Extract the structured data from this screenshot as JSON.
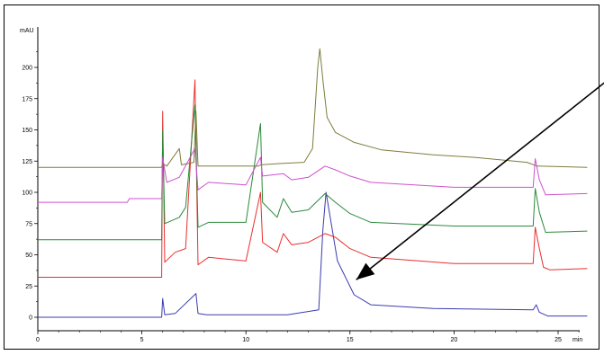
{
  "chart_data": {
    "type": "line",
    "title": "",
    "ylabel": "mAU",
    "xlabel": "min",
    "xlim": [
      0,
      26.8
    ],
    "ylim": [
      -13,
      238
    ],
    "x_ticks": [
      0,
      5,
      10,
      15,
      20,
      25
    ],
    "x_tick_labels": [
      "0",
      "5",
      "10",
      "15",
      "20",
      "25"
    ],
    "y_ticks": [
      0,
      25,
      50,
      75,
      100,
      125,
      150,
      175,
      200
    ],
    "y_tick_labels": [
      "0",
      "25",
      "50",
      "75",
      "100",
      "125",
      "150",
      "175",
      "200"
    ],
    "grid": false,
    "legend": "none",
    "series": [
      {
        "color": "#3b3bb0",
        "offset": 0,
        "points": [
          [
            0,
            0
          ],
          [
            5.95,
            0
          ],
          [
            6.0,
            15
          ],
          [
            6.1,
            2
          ],
          [
            6.6,
            3
          ],
          [
            7.6,
            19
          ],
          [
            7.7,
            3
          ],
          [
            8.1,
            2
          ],
          [
            12,
            2
          ],
          [
            13.5,
            6
          ],
          [
            13.7,
            70
          ],
          [
            13.85,
            100
          ],
          [
            14.0,
            85
          ],
          [
            14.4,
            45
          ],
          [
            15.2,
            18
          ],
          [
            16,
            10
          ],
          [
            19,
            7
          ],
          [
            23.8,
            6
          ],
          [
            23.95,
            10
          ],
          [
            24.1,
            4
          ],
          [
            24.5,
            1
          ],
          [
            26.4,
            1
          ]
        ]
      },
      {
        "color": "#e83030",
        "offset": 32,
        "points": [
          [
            0,
            32
          ],
          [
            5.95,
            32
          ],
          [
            6.0,
            165
          ],
          [
            6.1,
            44
          ],
          [
            6.6,
            52
          ],
          [
            7.1,
            55
          ],
          [
            7.55,
            190
          ],
          [
            7.7,
            42
          ],
          [
            8.2,
            48
          ],
          [
            10.0,
            45
          ],
          [
            10.7,
            100
          ],
          [
            10.8,
            60
          ],
          [
            11.5,
            52
          ],
          [
            11.8,
            67
          ],
          [
            12.2,
            58
          ],
          [
            13.0,
            60
          ],
          [
            13.8,
            67
          ],
          [
            14.3,
            64
          ],
          [
            15.0,
            55
          ],
          [
            16,
            48
          ],
          [
            20,
            43
          ],
          [
            23.8,
            43
          ],
          [
            23.9,
            72
          ],
          [
            24.1,
            55
          ],
          [
            24.3,
            40
          ],
          [
            24.6,
            38
          ],
          [
            26.4,
            39
          ]
        ]
      },
      {
        "color": "#2a8a3a",
        "offset": 62,
        "points": [
          [
            0,
            62
          ],
          [
            5.95,
            62
          ],
          [
            6.0,
            150
          ],
          [
            6.1,
            75
          ],
          [
            6.8,
            80
          ],
          [
            7.1,
            88
          ],
          [
            7.55,
            170
          ],
          [
            7.7,
            72
          ],
          [
            8.2,
            76
          ],
          [
            10.0,
            76
          ],
          [
            10.7,
            155
          ],
          [
            10.8,
            92
          ],
          [
            11.5,
            80
          ],
          [
            11.8,
            95
          ],
          [
            12.2,
            84
          ],
          [
            13.0,
            86
          ],
          [
            13.8,
            99
          ],
          [
            14.3,
            92
          ],
          [
            15.0,
            83
          ],
          [
            16,
            76
          ],
          [
            20,
            73
          ],
          [
            23.8,
            73
          ],
          [
            23.9,
            103
          ],
          [
            24.1,
            84
          ],
          [
            24.4,
            68
          ],
          [
            26.4,
            69
          ]
        ]
      },
      {
        "color": "#d050d0",
        "offset": 92,
        "points": [
          [
            0,
            92
          ],
          [
            4.3,
            92
          ],
          [
            4.4,
            95
          ],
          [
            5.95,
            95
          ],
          [
            6.0,
            128
          ],
          [
            6.2,
            108
          ],
          [
            6.8,
            112
          ],
          [
            7.55,
            135
          ],
          [
            7.7,
            102
          ],
          [
            8.2,
            108
          ],
          [
            10.0,
            106
          ],
          [
            10.7,
            128
          ],
          [
            10.8,
            113
          ],
          [
            11.8,
            115
          ],
          [
            12.2,
            110
          ],
          [
            13.0,
            112
          ],
          [
            13.8,
            121
          ],
          [
            14.3,
            118
          ],
          [
            15.0,
            113
          ],
          [
            16,
            108
          ],
          [
            20,
            104
          ],
          [
            23.8,
            104
          ],
          [
            23.9,
            127
          ],
          [
            24.1,
            110
          ],
          [
            24.4,
            98
          ],
          [
            26.4,
            99
          ]
        ]
      },
      {
        "color": "#7d7d3c",
        "offset": 120,
        "points": [
          [
            0,
            120
          ],
          [
            5.95,
            120
          ],
          [
            6.0,
            123
          ],
          [
            6.2,
            121
          ],
          [
            6.8,
            135
          ],
          [
            6.9,
            122
          ],
          [
            7.5,
            124
          ],
          [
            7.6,
            165
          ],
          [
            7.7,
            121
          ],
          [
            8.2,
            121
          ],
          [
            10.6,
            121
          ],
          [
            10.7,
            122
          ],
          [
            11.6,
            123
          ],
          [
            12.8,
            124
          ],
          [
            13.2,
            135
          ],
          [
            13.45,
            200
          ],
          [
            13.55,
            215
          ],
          [
            13.7,
            190
          ],
          [
            13.9,
            160
          ],
          [
            14.3,
            148
          ],
          [
            15.2,
            140
          ],
          [
            16.5,
            134
          ],
          [
            19,
            130
          ],
          [
            21,
            128
          ],
          [
            23.5,
            124
          ],
          [
            24.0,
            121
          ],
          [
            26.4,
            120
          ]
        ]
      }
    ],
    "annotations": [
      {
        "type": "arrow",
        "from_x": 28.0,
        "from_y": 198,
        "to_x": 15.3,
        "to_y": 30
      }
    ]
  }
}
